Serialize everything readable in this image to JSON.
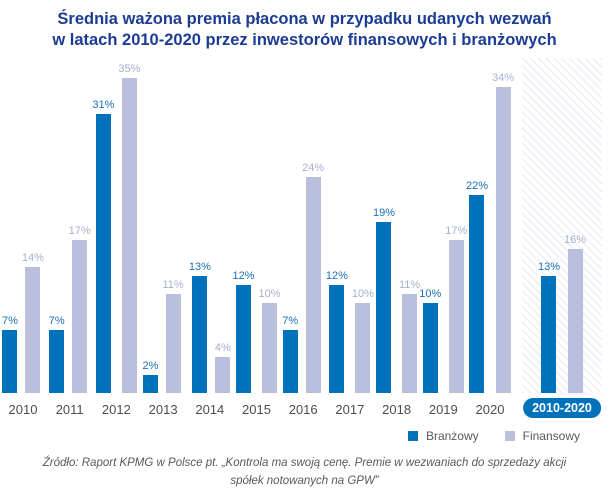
{
  "header": {
    "title_lines": [
      "Średnia ważona premia płacona w przypadku udanych wezwań",
      "w latach 2010-2020 przez inwestorów finansowych i branżowych"
    ]
  },
  "chart_data": {
    "type": "bar",
    "title": "Średnia ważona premia płacona w przypadku udanych wezwań w latach 2010-2020 przez inwestorów finansowych i branżowych",
    "categories": [
      "2010",
      "2011",
      "2012",
      "2013",
      "2014",
      "2015",
      "2016",
      "2017",
      "2018",
      "2019",
      "2020",
      "2010-2020"
    ],
    "series": [
      {
        "name": "Branżowy",
        "color": "#0072bc",
        "values": [
          7,
          7,
          31,
          2,
          13,
          12,
          7,
          12,
          19,
          10,
          22,
          13
        ]
      },
      {
        "name": "Finansowy",
        "color": "#b9bfdc",
        "values": [
          14,
          17,
          35,
          11,
          4,
          10,
          24,
          10,
          11,
          17,
          34,
          16
        ]
      }
    ],
    "unit": "%",
    "ylim": [
      0,
      35
    ],
    "grid": false,
    "value_labels": true,
    "legend_position": "bottom-right",
    "summary_group": "2010-2020",
    "summary_group_style": "diagonal-hatch-background, blue-pill-label",
    "pill_color": "#0072bc",
    "title_color": "#1c3c94"
  },
  "footer": {
    "source": "Źródło: Raport KPMG w Polsce pt. „Kontrola ma swoją cenę. Premie w wezwaniach do sprzedaży akcji spółek notowanych na GPW”"
  }
}
